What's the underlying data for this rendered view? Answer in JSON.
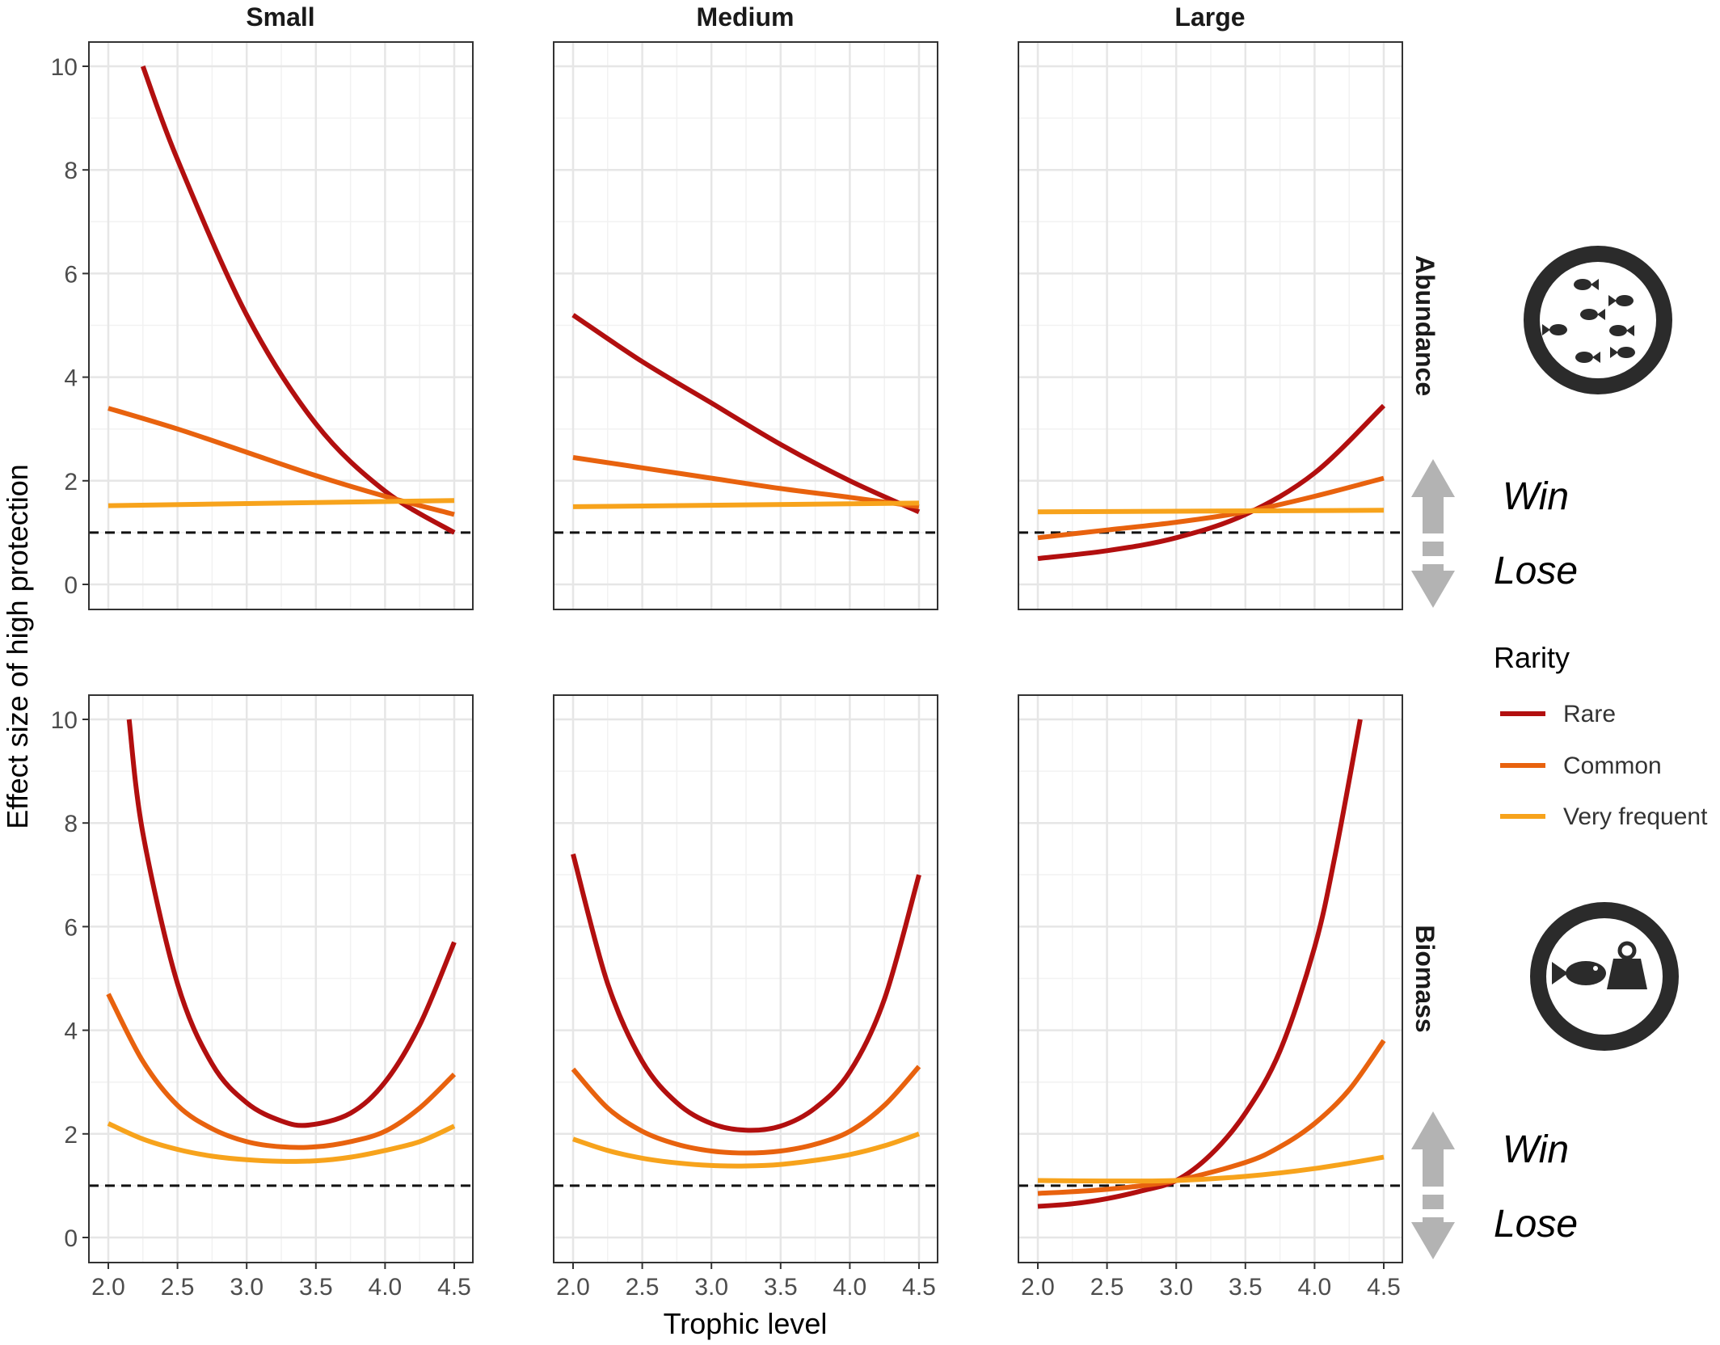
{
  "chart_data": {
    "type": "line",
    "columns": [
      "Small",
      "Medium",
      "Large"
    ],
    "rows": [
      "Abundance",
      "Biomass"
    ],
    "xlabel": "Trophic level",
    "ylabel": "Effect size of high protection",
    "xlim": [
      2.0,
      4.5
    ],
    "ylim": [
      0,
      10
    ],
    "xticks": [
      "2.0",
      "2.5",
      "3.0",
      "3.5",
      "4.0",
      "4.5"
    ],
    "yticks": [
      "0",
      "2",
      "4",
      "6",
      "8",
      "10"
    ],
    "reference_line": 1,
    "grid": true,
    "legend": {
      "title": "Rarity",
      "position": "right",
      "entries": [
        {
          "name": "Rare",
          "color": "#b20f0f"
        },
        {
          "name": "Common",
          "color": "#e8620e"
        },
        {
          "name": "Very frequent",
          "color": "#f7a31c"
        }
      ]
    },
    "annotations": {
      "win": "Win",
      "lose": "Lose"
    },
    "panels": [
      {
        "row": "Abundance",
        "col": "Small",
        "series": [
          {
            "name": "Rare",
            "x": [
              2.25,
              2.5,
              3.0,
              3.5,
              4.0,
              4.5
            ],
            "y": [
              10.0,
              8.2,
              5.2,
              3.1,
              1.8,
              1.0
            ]
          },
          {
            "name": "Common",
            "x": [
              2.0,
              2.5,
              3.0,
              3.5,
              4.0,
              4.5
            ],
            "y": [
              3.4,
              3.0,
              2.55,
              2.1,
              1.7,
              1.35
            ]
          },
          {
            "name": "Very frequent",
            "x": [
              2.0,
              4.5
            ],
            "y": [
              1.52,
              1.62
            ]
          }
        ]
      },
      {
        "row": "Abundance",
        "col": "Medium",
        "series": [
          {
            "name": "Rare",
            "x": [
              2.0,
              2.5,
              3.0,
              3.5,
              4.0,
              4.5
            ],
            "y": [
              5.2,
              4.3,
              3.5,
              2.7,
              2.0,
              1.4
            ]
          },
          {
            "name": "Common",
            "x": [
              2.0,
              2.5,
              3.0,
              3.5,
              4.0,
              4.5
            ],
            "y": [
              2.45,
              2.25,
              2.05,
              1.85,
              1.68,
              1.5
            ]
          },
          {
            "name": "Very frequent",
            "x": [
              2.0,
              4.5
            ],
            "y": [
              1.5,
              1.57
            ]
          }
        ]
      },
      {
        "row": "Abundance",
        "col": "Large",
        "series": [
          {
            "name": "Rare",
            "x": [
              2.0,
              2.5,
              3.0,
              3.5,
              4.0,
              4.5
            ],
            "y": [
              0.5,
              0.65,
              0.9,
              1.35,
              2.15,
              3.45
            ]
          },
          {
            "name": "Common",
            "x": [
              2.0,
              2.5,
              3.0,
              3.5,
              4.0,
              4.5
            ],
            "y": [
              0.9,
              1.05,
              1.2,
              1.4,
              1.7,
              2.05
            ]
          },
          {
            "name": "Very frequent",
            "x": [
              2.0,
              4.5
            ],
            "y": [
              1.4,
              1.43
            ]
          }
        ]
      },
      {
        "row": "Biomass",
        "col": "Small",
        "series": [
          {
            "name": "Rare",
            "x": [
              2.15,
              2.25,
              2.5,
              2.75,
              3.0,
              3.25,
              3.45,
              3.75,
              4.0,
              4.25,
              4.5
            ],
            "y": [
              10.0,
              7.8,
              4.9,
              3.35,
              2.6,
              2.25,
              2.17,
              2.4,
              3.0,
              4.1,
              5.7
            ]
          },
          {
            "name": "Common",
            "x": [
              2.0,
              2.25,
              2.5,
              2.75,
              3.0,
              3.25,
              3.5,
              3.75,
              4.0,
              4.25,
              4.5
            ],
            "y": [
              4.7,
              3.4,
              2.55,
              2.1,
              1.85,
              1.75,
              1.75,
              1.85,
              2.05,
              2.5,
              3.15
            ]
          },
          {
            "name": "Very frequent",
            "x": [
              2.0,
              2.25,
              2.5,
              2.75,
              3.0,
              3.25,
              3.5,
              3.75,
              4.0,
              4.25,
              4.5
            ],
            "y": [
              2.2,
              1.9,
              1.7,
              1.57,
              1.5,
              1.47,
              1.48,
              1.55,
              1.68,
              1.85,
              2.15
            ]
          }
        ]
      },
      {
        "row": "Biomass",
        "col": "Medium",
        "series": [
          {
            "name": "Rare",
            "x": [
              2.0,
              2.25,
              2.5,
              2.75,
              3.0,
              3.25,
              3.5,
              3.75,
              4.0,
              4.25,
              4.5
            ],
            "y": [
              7.4,
              4.9,
              3.4,
              2.6,
              2.2,
              2.07,
              2.15,
              2.5,
              3.2,
              4.6,
              7.0
            ]
          },
          {
            "name": "Common",
            "x": [
              2.0,
              2.25,
              2.5,
              2.75,
              3.0,
              3.25,
              3.5,
              3.75,
              4.0,
              4.25,
              4.5
            ],
            "y": [
              3.25,
              2.5,
              2.05,
              1.8,
              1.67,
              1.63,
              1.67,
              1.8,
              2.05,
              2.55,
              3.3
            ]
          },
          {
            "name": "Very frequent",
            "x": [
              2.0,
              2.25,
              2.5,
              2.75,
              3.0,
              3.25,
              3.5,
              3.75,
              4.0,
              4.25,
              4.5
            ],
            "y": [
              1.9,
              1.68,
              1.53,
              1.44,
              1.39,
              1.38,
              1.41,
              1.49,
              1.6,
              1.77,
              2.0
            ]
          }
        ]
      },
      {
        "row": "Biomass",
        "col": "Large",
        "series": [
          {
            "name": "Rare",
            "x": [
              2.0,
              2.25,
              2.5,
              2.75,
              3.0,
              3.25,
              3.5,
              3.75,
              4.0,
              4.15,
              4.33
            ],
            "y": [
              0.6,
              0.65,
              0.75,
              0.9,
              1.1,
              1.6,
              2.4,
              3.6,
              5.6,
              7.4,
              10.0
            ]
          },
          {
            "name": "Common",
            "x": [
              2.0,
              2.5,
              3.0,
              3.5,
              3.75,
              4.0,
              4.25,
              4.5
            ],
            "y": [
              0.85,
              0.93,
              1.1,
              1.45,
              1.75,
              2.2,
              2.85,
              3.8
            ]
          },
          {
            "name": "Very frequent",
            "x": [
              2.0,
              2.5,
              3.0,
              3.5,
              4.0,
              4.5
            ],
            "y": [
              1.1,
              1.09,
              1.1,
              1.18,
              1.33,
              1.55
            ]
          }
        ]
      }
    ]
  }
}
